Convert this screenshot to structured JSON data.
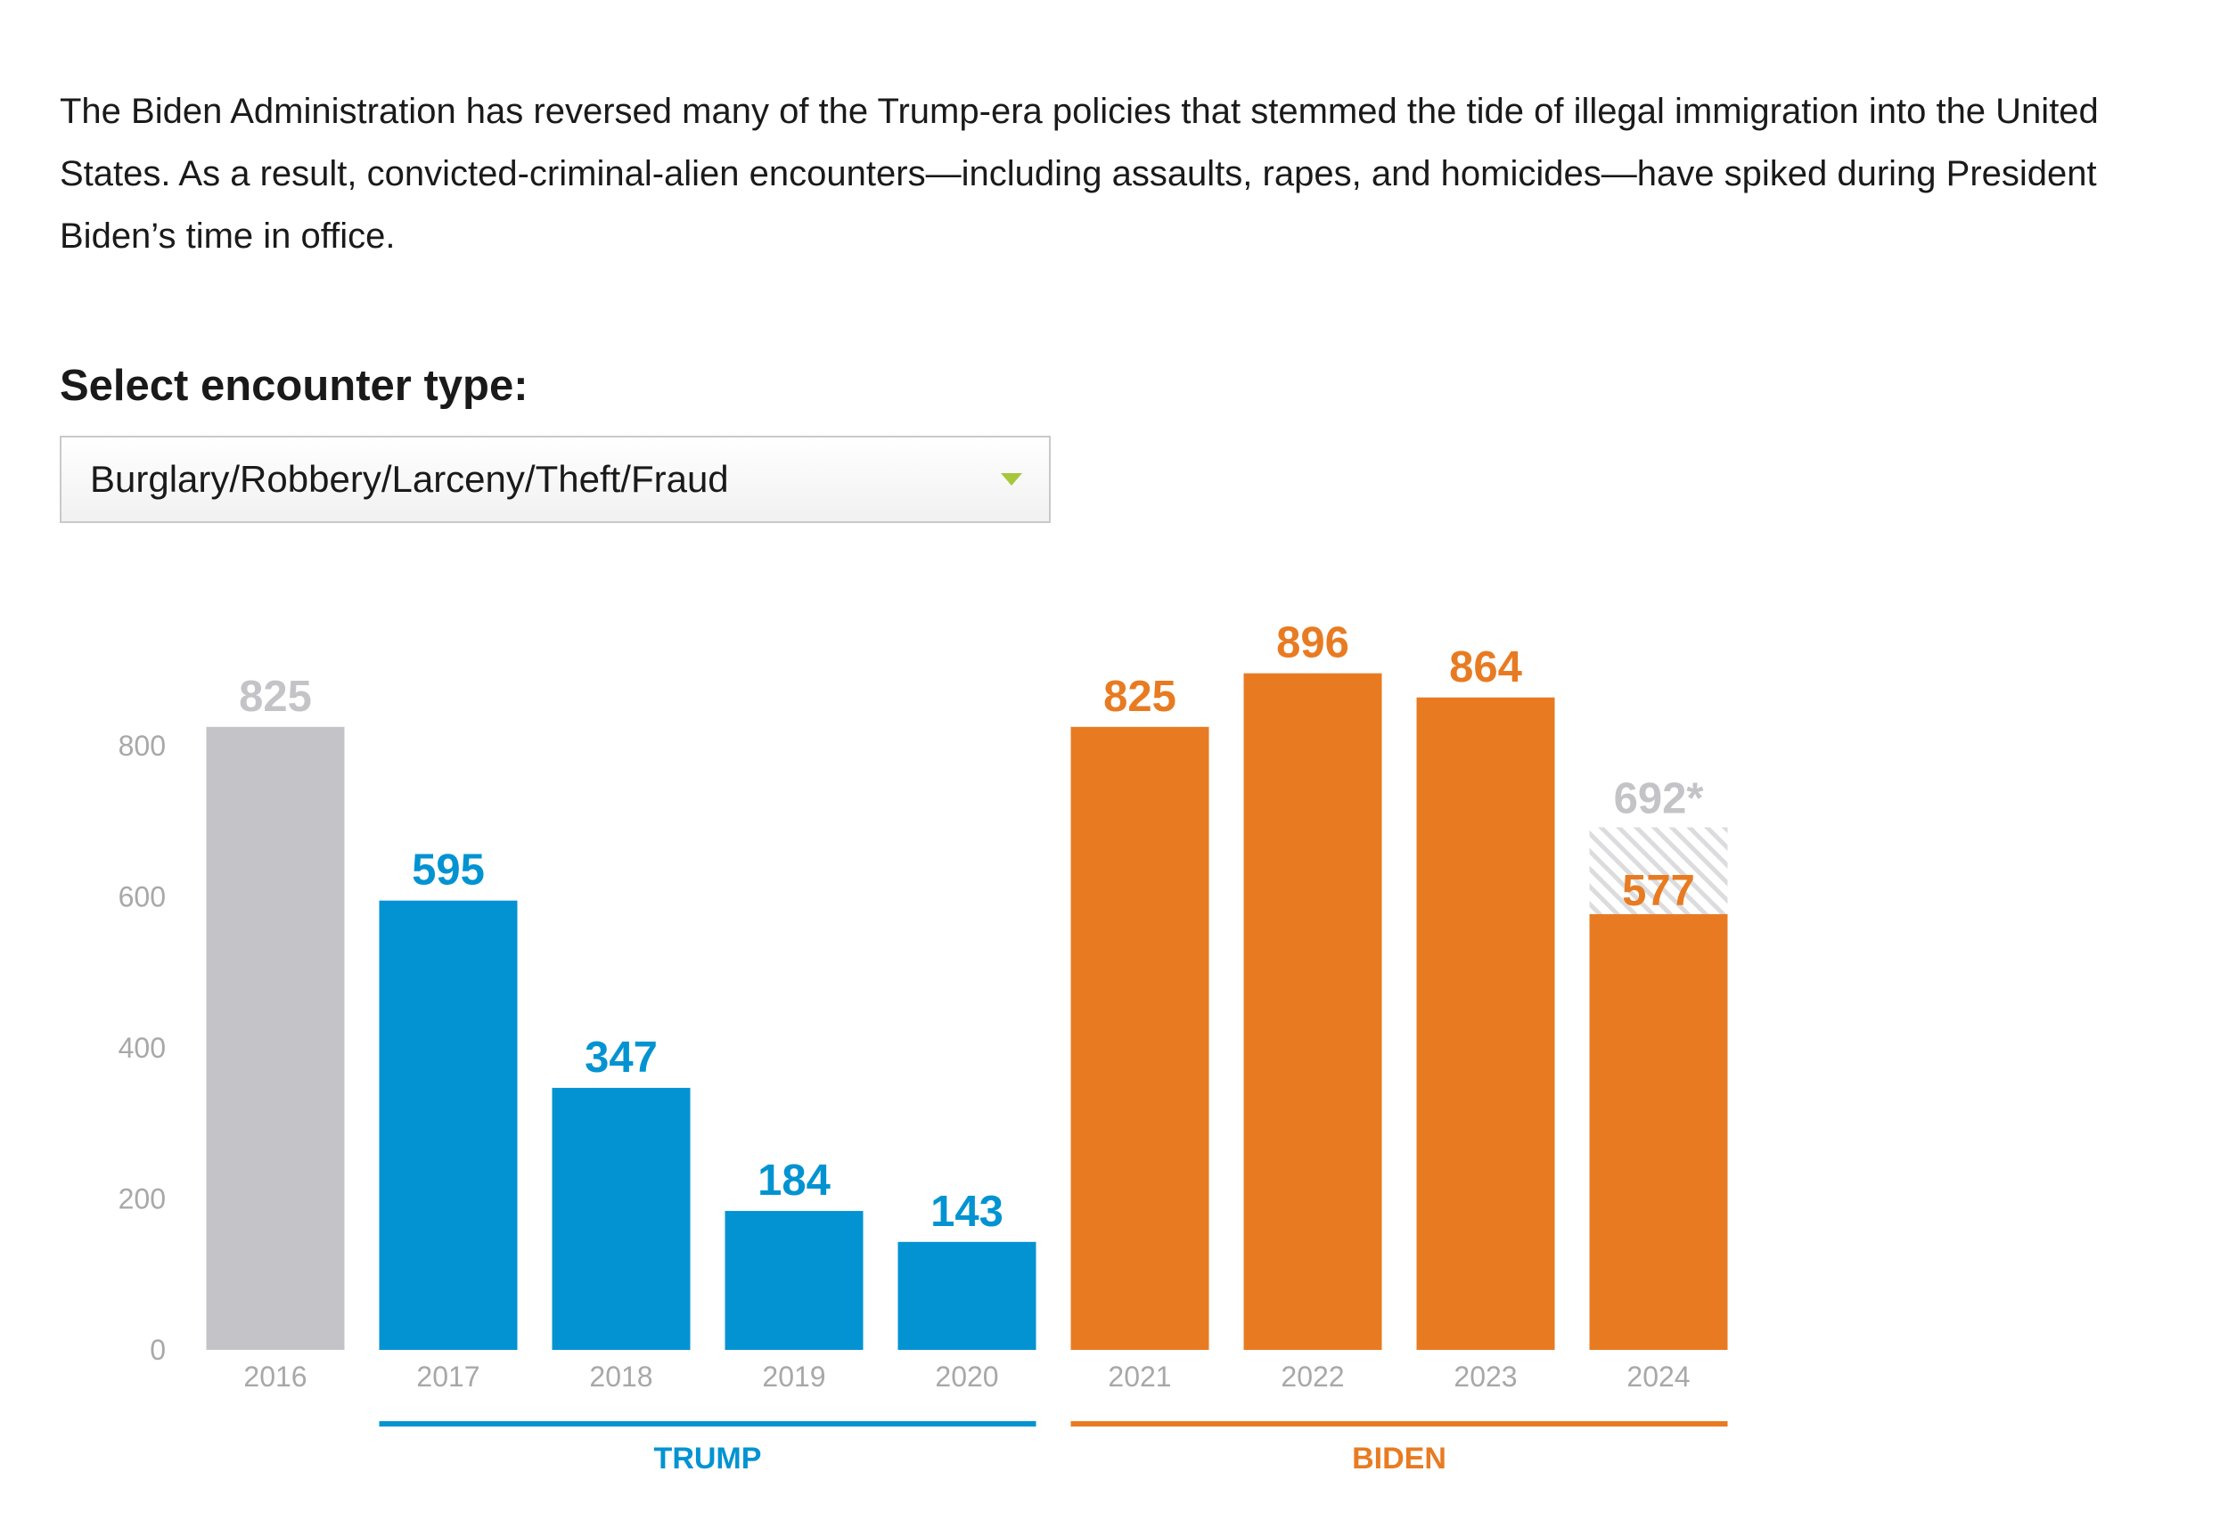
{
  "intro_text": "The Biden Administration has reversed many of the Trump-era policies that stemmed the tide of illegal immigration into the United States. As a result, convicted-criminal-alien encounters—including assaults, rapes, and homicides—have spiked during President Biden’s time in office.",
  "selector": {
    "label": "Select encounter type:",
    "selected": "Burglary/Robbery/Larceny/Theft/Fraud",
    "icon": "chevron-down-icon",
    "arrow_color": "#a6c73a"
  },
  "colors": {
    "baseline": "#c4c4c8",
    "trump": "#0393d2",
    "biden": "#e87b22",
    "projection": "#c4c4c8",
    "axis_text": "#a8a8a8"
  },
  "chart_data": {
    "type": "bar",
    "categories": [
      "2016",
      "2017",
      "2018",
      "2019",
      "2020",
      "2021",
      "2022",
      "2023",
      "2024"
    ],
    "values": [
      825,
      595,
      347,
      184,
      143,
      825,
      896,
      864,
      577
    ],
    "value_labels": [
      "825",
      "595",
      "347",
      "184",
      "143",
      "825",
      "896",
      "864",
      "577"
    ],
    "groups": [
      "baseline",
      "trump",
      "trump",
      "trump",
      "trump",
      "biden",
      "biden",
      "biden",
      "biden"
    ],
    "projected": {
      "category": "2024",
      "value": 692,
      "label": "692*"
    },
    "yticks": [
      0,
      200,
      400,
      600,
      800
    ],
    "ylim": [
      0,
      900
    ],
    "grid": false,
    "era_labels": [
      {
        "label": "TRUMP",
        "from": "2017",
        "to": "2020",
        "group": "trump"
      },
      {
        "label": "BIDEN",
        "from": "2021",
        "to": "2024",
        "group": "biden"
      }
    ]
  }
}
